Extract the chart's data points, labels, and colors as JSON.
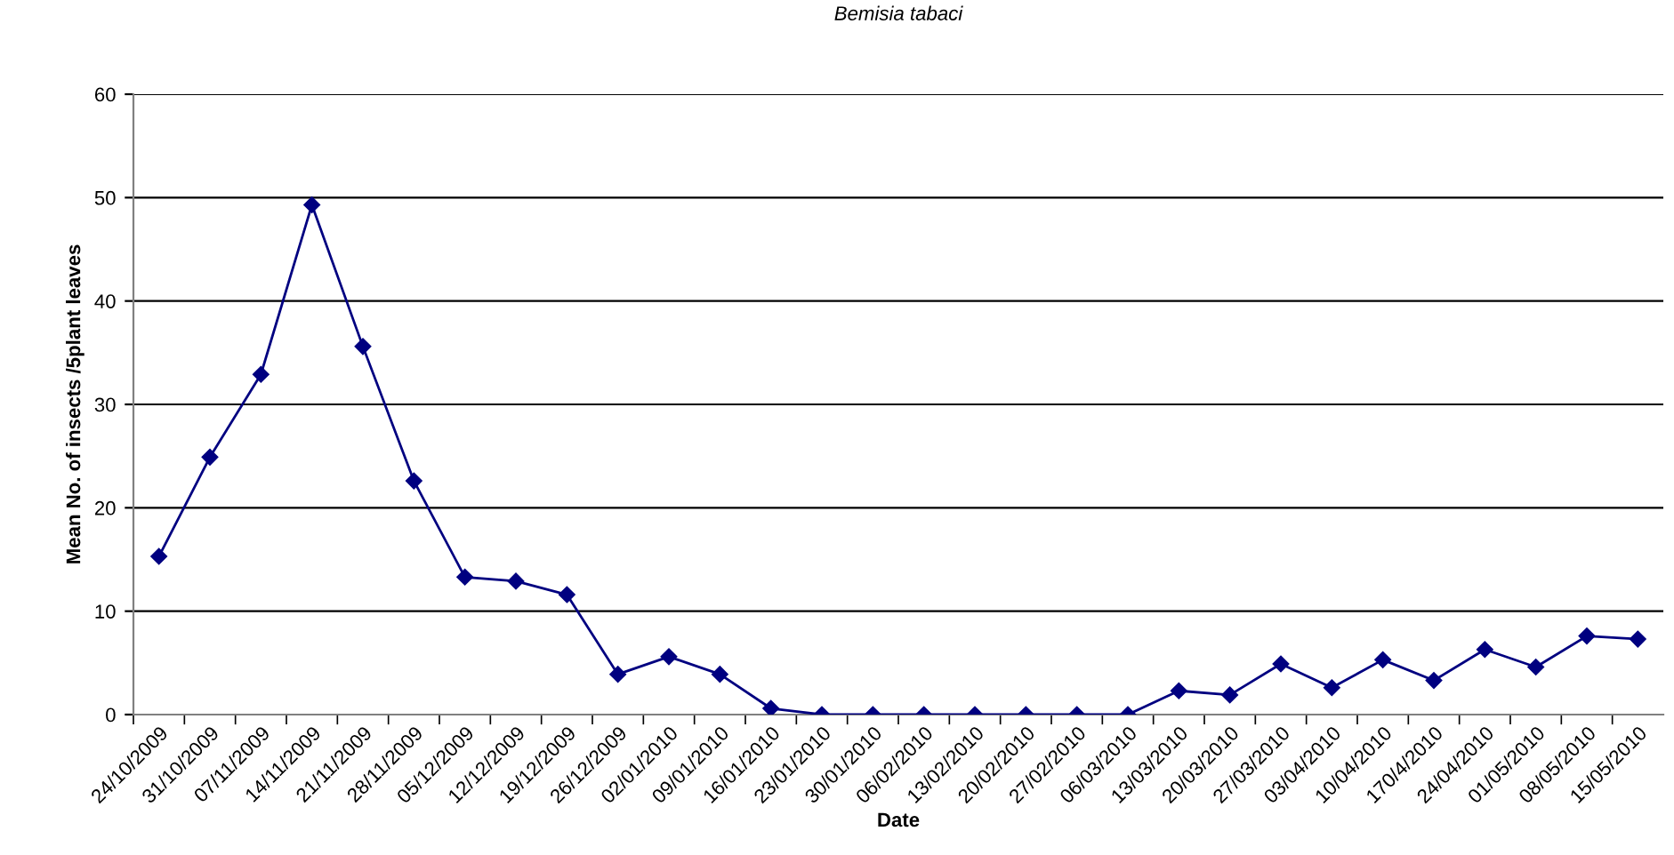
{
  "chart_data": {
    "type": "line",
    "title": "Bemisia tabaci",
    "xlabel": "Date",
    "ylabel": "Mean No. of insects /5plant leaves",
    "categories": [
      "24/10/2009",
      "31/10/2009",
      "07/11/2009",
      "14/11/2009",
      "21/11/2009",
      "28/11/2009",
      "05/12/2009",
      "12/12/2009",
      "19/12/2009",
      "26/12/2009",
      "02/01/2010",
      "09/01/2010",
      "16/01/2010",
      "23/01/2010",
      "30/01/2010",
      "06/02/2010",
      "13/02/2010",
      "20/02/2010",
      "27/02/2010",
      "06/03/2010",
      "13/03/2010",
      "20/03/2010",
      "27/03/2010",
      "03/04/2010",
      "10/04/2010",
      "170/4/2010",
      "24/04/2010",
      "01/05/2010",
      "08/05/2010",
      "15/05/2010"
    ],
    "series": [
      {
        "color": "#000080",
        "values": [
          15.3,
          24.9,
          32.9,
          49.3,
          35.6,
          22.6,
          13.3,
          12.9,
          11.6,
          3.9,
          5.6,
          3.9,
          0.6,
          0,
          0,
          0,
          0,
          0,
          0,
          0,
          2.3,
          1.9,
          4.9,
          2.6,
          5.3,
          3.3,
          6.3,
          4.6,
          7.6,
          7.3
        ]
      }
    ],
    "ylim": [
      0,
      60
    ],
    "yticks": [
      0,
      10,
      20,
      30,
      40,
      50,
      60
    ],
    "grid": "y",
    "marker": "diamond",
    "line_style": "solid",
    "legend": false
  }
}
